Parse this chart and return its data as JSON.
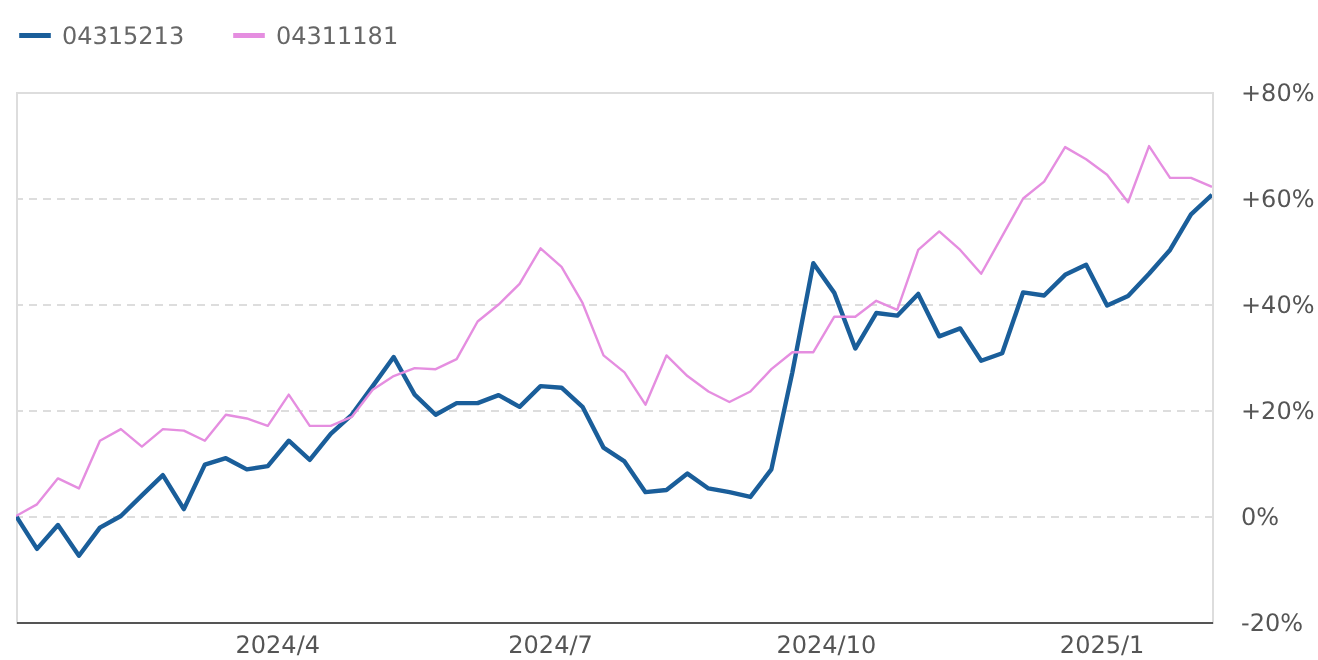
{
  "chart_data": {
    "type": "line",
    "x": [
      "2024-01-05",
      "2024-01-12",
      "2024-01-19",
      "2024-01-26",
      "2024-02-02",
      "2024-02-09",
      "2024-02-16",
      "2024-02-23",
      "2024-03-01",
      "2024-03-08",
      "2024-03-15",
      "2024-03-22",
      "2024-03-29",
      "2024-04-05",
      "2024-04-12",
      "2024-04-19",
      "2024-04-26",
      "2024-05-03",
      "2024-05-10",
      "2024-05-17",
      "2024-05-24",
      "2024-05-31",
      "2024-06-07",
      "2024-06-14",
      "2024-06-21",
      "2024-06-28",
      "2024-07-05",
      "2024-07-12",
      "2024-07-19",
      "2024-07-26",
      "2024-08-02",
      "2024-08-09",
      "2024-08-16",
      "2024-08-23",
      "2024-08-30",
      "2024-09-06",
      "2024-09-13",
      "2024-09-20",
      "2024-09-27",
      "2024-10-04",
      "2024-10-11",
      "2024-10-18",
      "2024-10-25",
      "2024-11-01",
      "2024-11-08",
      "2024-11-15",
      "2024-11-22",
      "2024-11-29",
      "2024-12-06",
      "2024-12-13",
      "2024-12-20",
      "2024-12-27",
      "2025-01-03",
      "2025-01-10",
      "2025-01-17",
      "2025-01-24",
      "2025-01-31",
      "2025-02-07"
    ],
    "series": [
      {
        "name": "04315213",
        "color": "#1a5e9a",
        "values": [
          0,
          -6.2,
          -1.7,
          -7.5,
          -2.2,
          0,
          3.9,
          7.7,
          1.3,
          9.7,
          10.9,
          8.8,
          9.4,
          14.2,
          10.6,
          15.5,
          19.1,
          24.5,
          30.0,
          22.9,
          19.1,
          21.3,
          21.3,
          22.8,
          20.6,
          24.5,
          24.2,
          20.6,
          12.9,
          10.3,
          4.5,
          4.9,
          8.0,
          5.2,
          4.5,
          3.6,
          8.8,
          27.1,
          47.7,
          42.1,
          31.6,
          38.3,
          37.8,
          41.9,
          33.9,
          35.4,
          29.3,
          30.7,
          42.2,
          41.6,
          45.5,
          47.4,
          39.7,
          41.5,
          45.7,
          50.2,
          56.9,
          60.6
        ]
      },
      {
        "name": "04311181",
        "color": "#e58ee0",
        "values": [
          0,
          2.2,
          7.1,
          5.2,
          14.2,
          16.4,
          13.1,
          16.4,
          16.1,
          14.2,
          19.1,
          18.4,
          17.0,
          22.9,
          17.0,
          17.0,
          18.7,
          23.8,
          26.4,
          27.9,
          27.7,
          29.6,
          36.7,
          39.9,
          43.8,
          50.5,
          47.0,
          40.2,
          30.3,
          27.1,
          21.0,
          30.3,
          26.4,
          23.5,
          21.5,
          23.5,
          27.7,
          30.9,
          30.9,
          37.6,
          37.6,
          40.6,
          38.9,
          50.2,
          53.7,
          50.2,
          45.7,
          52.8,
          59.9,
          63.1,
          69.6,
          67.3,
          64.4,
          59.2,
          69.8,
          63.8,
          63.8,
          62.1
        ]
      }
    ],
    "xlim": [
      "2024-01-05",
      "2025-02-07"
    ],
    "xticks": [
      {
        "value": "2024-04-01",
        "label": "2024/4"
      },
      {
        "value": "2024-07-01",
        "label": "2024/7"
      },
      {
        "value": "2024-10-01",
        "label": "2024/10"
      },
      {
        "value": "2025-01-01",
        "label": "2025/1"
      }
    ],
    "ylim": [
      -20,
      80
    ],
    "yticks": [
      {
        "value": -20,
        "label": "-20%"
      },
      {
        "value": 0,
        "label": "0%"
      },
      {
        "value": 20,
        "label": "+20%"
      },
      {
        "value": 40,
        "label": "+40%"
      },
      {
        "value": 60,
        "label": "+60%"
      },
      {
        "value": 80,
        "label": "+80%"
      }
    ],
    "grid": "y",
    "legend": "top left",
    "marker": "none",
    "line_style": "solid"
  }
}
